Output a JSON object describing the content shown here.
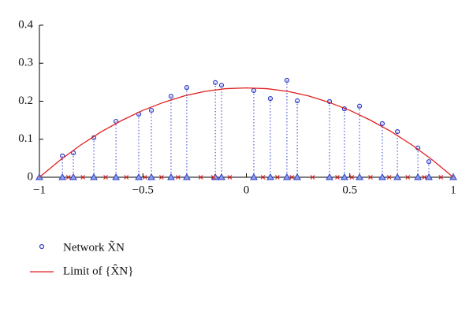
{
  "chart_data": {
    "type": "scatter",
    "xlim": [
      -1,
      1
    ],
    "xticks": [
      {
        "value": -1,
        "label": "−1"
      },
      {
        "value": -0.5,
        "label": "−0.5"
      },
      0,
      0.5,
      1
    ],
    "ylim": [
      0,
      0.4
    ],
    "yticks": [
      0,
      0.1,
      0.2,
      0.3,
      0.4
    ],
    "legend": "bottom-left",
    "series": [
      {
        "name": "Network X̃N",
        "color": "#2b3bc8",
        "marker": "circle",
        "x": [
          -0.889,
          -0.836,
          -0.737,
          -0.63,
          -0.52,
          -0.459,
          -0.364,
          -0.288,
          -0.15,
          -0.12,
          0.036,
          0.116,
          0.196,
          0.246,
          0.402,
          0.474,
          0.547,
          0.657,
          0.73,
          0.829,
          0.882
        ],
        "values": [
          0.056,
          0.064,
          0.104,
          0.147,
          0.166,
          0.176,
          0.213,
          0.236,
          0.249,
          0.242,
          0.228,
          0.207,
          0.255,
          0.201,
          0.199,
          0.18,
          0.187,
          0.141,
          0.12,
          0.077,
          0.041
        ]
      },
      {
        "name": "Limit of {X̂N}",
        "color": "#e02020",
        "marker": "line",
        "x": [
          -1,
          -0.9,
          -0.8,
          -0.7,
          -0.6,
          -0.5,
          -0.4,
          -0.3,
          -0.2,
          -0.1,
          0,
          0.1,
          0.2,
          0.3,
          0.4,
          0.5,
          0.6,
          0.7,
          0.8,
          0.9,
          1
        ],
        "values": [
          0,
          0.045,
          0.085,
          0.12,
          0.15,
          0.176,
          0.197,
          0.214,
          0.226,
          0.233,
          0.235,
          0.233,
          0.226,
          0.214,
          0.197,
          0.176,
          0.15,
          0.12,
          0.085,
          0.045,
          0
        ]
      },
      {
        "color": "#e02020",
        "marker": "cross",
        "x": [
          -0.86,
          -0.79,
          -0.68,
          -0.58,
          -0.49,
          -0.41,
          -0.33,
          -0.22,
          -0.16,
          -0.08,
          0.08,
          0.15,
          0.22,
          0.32,
          0.44,
          0.51,
          0.6,
          0.69,
          0.78,
          0.86,
          0.94
        ],
        "values": [
          0,
          0,
          0,
          0,
          0,
          0,
          0,
          0,
          0,
          0,
          0,
          0,
          0,
          0,
          0,
          0,
          0,
          0,
          0,
          0,
          0
        ]
      }
    ]
  }
}
